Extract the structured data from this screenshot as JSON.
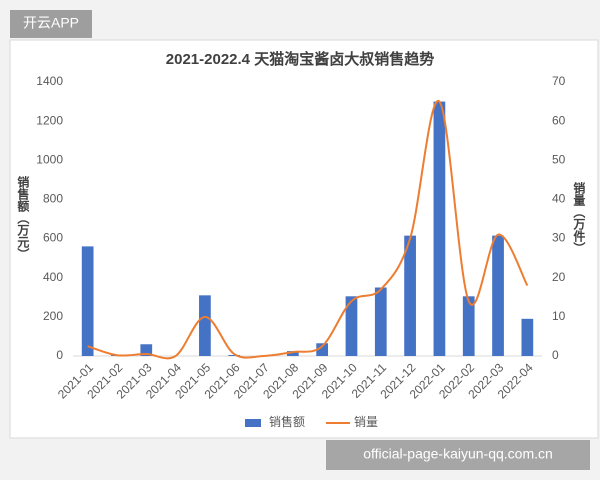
{
  "overlay": {
    "badge": "开云APP",
    "watermark": "official-page-kaiyun-qq.com.cn"
  },
  "chart_data": {
    "type": "bar-line",
    "title": "2021-2022.4 天猫淘宝酱卤大叔销售趋势",
    "y_label": "销售额（万元）",
    "y2_label": "销量（万件）",
    "categories": [
      "2021-01",
      "2021-02",
      "2021-03",
      "2021-04",
      "2021-05",
      "2021-06",
      "2021-07",
      "2021-08",
      "2021-09",
      "2021-10",
      "2021-11",
      "2021-12",
      "2022-01",
      "2022-02",
      "2022-03",
      "2022-04"
    ],
    "series": [
      {
        "name": "销售额",
        "type": "bar",
        "color": "#4472c4",
        "values": [
          560,
          5,
          60,
          0,
          310,
          5,
          0,
          25,
          65,
          305,
          350,
          615,
          1300,
          305,
          615,
          190
        ]
      },
      {
        "name": "销量",
        "type": "line",
        "axis": "y2",
        "color": "#ed7d31",
        "values": [
          2.5,
          0.2,
          0.5,
          0,
          10,
          0.5,
          0,
          1,
          2.5,
          14,
          17,
          30,
          65,
          14,
          31,
          18
        ]
      }
    ],
    "ylim": [
      0,
      1400
    ],
    "yticks": [
      0,
      200,
      400,
      600,
      800,
      1000,
      1200,
      1400
    ],
    "y2lim": [
      0,
      70
    ],
    "y2ticks": [
      0,
      10,
      20,
      30,
      40,
      50,
      60,
      70
    ],
    "grid": false,
    "legend": "bottom"
  }
}
